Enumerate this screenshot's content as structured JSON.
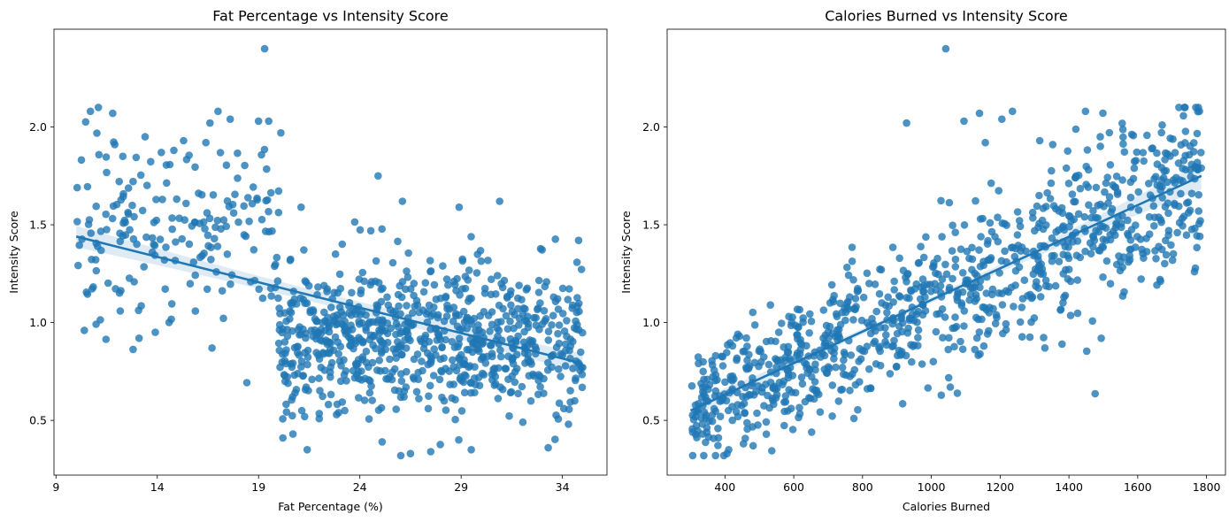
{
  "chart_data": [
    {
      "type": "scatter",
      "title": "Fat Percentage vs Intensity Score",
      "xlabel": "Fat Percentage (%)",
      "ylabel": "Intensity Score",
      "xlim": [
        8.9,
        36.2
      ],
      "ylim": [
        0.22,
        2.5
      ],
      "xticks": [
        9,
        14,
        19,
        24,
        29,
        34
      ],
      "yticks": [
        0.5,
        1.0,
        1.5,
        2.0
      ],
      "ytick_labels": [
        "0.5",
        "1.0",
        "1.5",
        "2.0"
      ],
      "grid": false,
      "regression": {
        "x": [
          10,
          35
        ],
        "y": [
          1.44,
          0.79
        ],
        "ci": [
          0.055,
          0.03,
          0.05
        ]
      },
      "clusters": [
        {
          "x": [
            10,
            20
          ],
          "y_center": 1.48,
          "y_spread": 0.3,
          "n": 190
        },
        {
          "x": [
            20,
            35
          ],
          "y_center": 0.92,
          "y_spread": 0.25,
          "n": 780
        }
      ],
      "points": [
        {
          "x": 19.3,
          "y": 2.4
        },
        {
          "x": 10.7,
          "y": 2.08
        },
        {
          "x": 11.8,
          "y": 2.07
        },
        {
          "x": 17.0,
          "y": 2.08
        },
        {
          "x": 17.6,
          "y": 2.04
        },
        {
          "x": 19.5,
          "y": 2.03
        },
        {
          "x": 19.0,
          "y": 2.03
        },
        {
          "x": 16.6,
          "y": 2.02
        },
        {
          "x": 20.1,
          "y": 1.97
        },
        {
          "x": 13.4,
          "y": 1.95
        },
        {
          "x": 15.3,
          "y": 1.93
        },
        {
          "x": 16.4,
          "y": 1.92
        },
        {
          "x": 11.9,
          "y": 1.91
        },
        {
          "x": 12.3,
          "y": 1.85
        },
        {
          "x": 14.2,
          "y": 1.87
        },
        {
          "x": 24.9,
          "y": 1.75
        },
        {
          "x": 26.1,
          "y": 1.62
        },
        {
          "x": 30.9,
          "y": 1.62
        },
        {
          "x": 28.9,
          "y": 1.59
        },
        {
          "x": 21.1,
          "y": 1.59
        },
        {
          "x": 10.4,
          "y": 0.96
        },
        {
          "x": 13.1,
          "y": 0.92
        },
        {
          "x": 13.9,
          "y": 0.95
        },
        {
          "x": 16.7,
          "y": 0.87
        },
        {
          "x": 21.4,
          "y": 0.35
        },
        {
          "x": 26.5,
          "y": 0.33
        },
        {
          "x": 27.5,
          "y": 0.34
        },
        {
          "x": 29.5,
          "y": 0.35
        },
        {
          "x": 33.3,
          "y": 0.36
        },
        {
          "x": 25.1,
          "y": 0.39
        },
        {
          "x": 20.2,
          "y": 0.41
        },
        {
          "x": 20.7,
          "y": 0.43
        },
        {
          "x": 34.8,
          "y": 1.42
        },
        {
          "x": 35.0,
          "y": 0.77
        },
        {
          "x": 34.3,
          "y": 0.48
        }
      ]
    },
    {
      "type": "scatter",
      "title": "Calories Burned vs Intensity Score",
      "xlabel": "Calories Burned",
      "ylabel": "Intensity Score",
      "xlim": [
        232,
        1855
      ],
      "ylim": [
        0.22,
        2.5
      ],
      "xticks": [
        400,
        600,
        800,
        1000,
        1200,
        1400,
        1600,
        1800
      ],
      "yticks": [
        0.5,
        1.0,
        1.5,
        2.0
      ],
      "ytick_labels": [
        "0.5",
        "1.0",
        "1.5",
        "2.0"
      ],
      "grid": false,
      "regression": {
        "x": [
          300,
          1785
        ],
        "y": [
          0.55,
          1.75
        ],
        "ci": [
          0.04,
          0.015,
          0.07
        ]
      },
      "clusters": [
        {
          "x": [
            300,
            1785
          ],
          "slope": 0.00081,
          "intercept": 0.31,
          "spread": 0.22,
          "n": 970
        }
      ],
      "points": [
        {
          "x": 1042,
          "y": 2.4
        },
        {
          "x": 1236,
          "y": 2.08
        },
        {
          "x": 1448,
          "y": 2.08
        },
        {
          "x": 1140,
          "y": 2.07
        },
        {
          "x": 1205,
          "y": 2.04
        },
        {
          "x": 1095,
          "y": 2.03
        },
        {
          "x": 928,
          "y": 2.02
        },
        {
          "x": 1491,
          "y": 1.95
        },
        {
          "x": 1315,
          "y": 1.93
        },
        {
          "x": 1353,
          "y": 1.91
        },
        {
          "x": 1157,
          "y": 1.92
        },
        {
          "x": 1782,
          "y": 1.52
        },
        {
          "x": 1765,
          "y": 1.26
        },
        {
          "x": 1715,
          "y": 1.46
        },
        {
          "x": 1690,
          "y": 1.47
        },
        {
          "x": 1665,
          "y": 1.22
        },
        {
          "x": 1625,
          "y": 1.43
        },
        {
          "x": 1494,
          "y": 0.92
        },
        {
          "x": 1573,
          "y": 1.31
        },
        {
          "x": 1580,
          "y": 1.59
        },
        {
          "x": 1634,
          "y": 1.54
        },
        {
          "x": 306,
          "y": 0.44
        },
        {
          "x": 335,
          "y": 0.43
        },
        {
          "x": 406,
          "y": 0.33
        },
        {
          "x": 411,
          "y": 0.35
        },
        {
          "x": 454,
          "y": 0.38
        },
        {
          "x": 482,
          "y": 0.37
        },
        {
          "x": 346,
          "y": 0.6
        },
        {
          "x": 373,
          "y": 0.65
        },
        {
          "x": 652,
          "y": 0.44
        },
        {
          "x": 775,
          "y": 0.51
        },
        {
          "x": 1055,
          "y": 0.67
        },
        {
          "x": 1330,
          "y": 0.87
        },
        {
          "x": 1380,
          "y": 0.89
        }
      ]
    }
  ]
}
